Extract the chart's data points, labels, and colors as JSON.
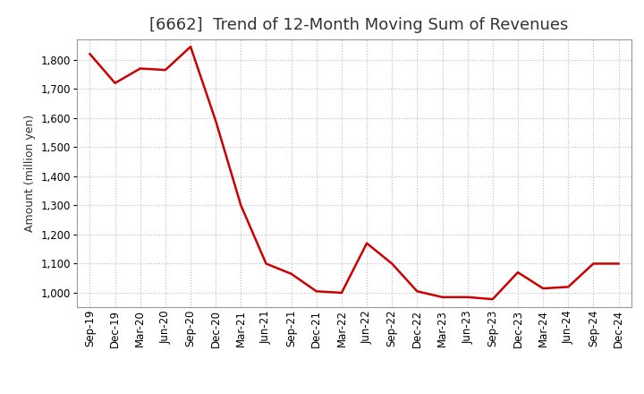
{
  "title": "[6662]  Trend of 12-Month Moving Sum of Revenues",
  "ylabel": "Amount (million yen)",
  "background_color": "#ffffff",
  "line_color": "#cc0000",
  "grid_color": "#bbbbbb",
  "x_labels": [
    "Sep-19",
    "Dec-19",
    "Mar-20",
    "Jun-20",
    "Sep-20",
    "Dec-20",
    "Mar-21",
    "Jun-21",
    "Sep-21",
    "Dec-21",
    "Mar-22",
    "Jun-22",
    "Sep-22",
    "Dec-22",
    "Mar-23",
    "Jun-23",
    "Sep-23",
    "Dec-23",
    "Mar-24",
    "Jun-24",
    "Sep-24",
    "Dec-24"
  ],
  "y_values": [
    1820,
    1720,
    1770,
    1765,
    1845,
    1590,
    1300,
    1100,
    1065,
    1005,
    1000,
    1170,
    1100,
    1005,
    985,
    985,
    978,
    1070,
    1015,
    1020,
    1100,
    1100
  ],
  "ylim_min": 950,
  "ylim_max": 1870,
  "yticks": [
    1000,
    1100,
    1200,
    1300,
    1400,
    1500,
    1600,
    1700,
    1800
  ],
  "title_fontsize": 13,
  "ylabel_fontsize": 9,
  "tick_fontsize": 8.5,
  "title_color": "#333333",
  "line_width": 1.8
}
